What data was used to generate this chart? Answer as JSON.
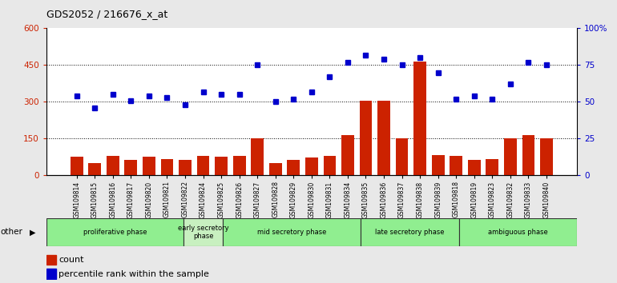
{
  "title": "GDS2052 / 216676_x_at",
  "samples": [
    "GSM109814",
    "GSM109815",
    "GSM109816",
    "GSM109817",
    "GSM109820",
    "GSM109821",
    "GSM109822",
    "GSM109824",
    "GSM109825",
    "GSM109826",
    "GSM109827",
    "GSM109828",
    "GSM109829",
    "GSM109830",
    "GSM109831",
    "GSM109834",
    "GSM109835",
    "GSM109836",
    "GSM109837",
    "GSM109838",
    "GSM109839",
    "GSM109818",
    "GSM109819",
    "GSM109823",
    "GSM109832",
    "GSM109833",
    "GSM109840"
  ],
  "counts": [
    75,
    50,
    80,
    62,
    75,
    68,
    62,
    80,
    75,
    80,
    150,
    50,
    65,
    72,
    80,
    165,
    305,
    305,
    150,
    465,
    82,
    80,
    62,
    68,
    150,
    165,
    150
  ],
  "percentiles": [
    54,
    46,
    55,
    51,
    54,
    53,
    48,
    57,
    55,
    55,
    75,
    50,
    52,
    57,
    67,
    77,
    82,
    79,
    75,
    80,
    70,
    52,
    54,
    52,
    62,
    77,
    75
  ],
  "phases": [
    {
      "name": "proliferative phase",
      "start": 0,
      "end": 7,
      "color": "#90ee90"
    },
    {
      "name": "early secretory\nphase",
      "start": 7,
      "end": 9,
      "color": "#c8f0c0"
    },
    {
      "name": "mid secretory phase",
      "start": 9,
      "end": 16,
      "color": "#90ee90"
    },
    {
      "name": "late secretory phase",
      "start": 16,
      "end": 21,
      "color": "#90ee90"
    },
    {
      "name": "ambiguous phase",
      "start": 21,
      "end": 27,
      "color": "#90ee90"
    }
  ],
  "bar_color": "#cc2200",
  "dot_color": "#0000cc",
  "ylim_left": [
    0,
    600
  ],
  "ylim_right": [
    0,
    100
  ],
  "yticks_left": [
    0,
    150,
    300,
    450,
    600
  ],
  "yticks_right": [
    0,
    25,
    50,
    75,
    100
  ],
  "ytick_labels_left": [
    "0",
    "150",
    "300",
    "450",
    "600"
  ],
  "ytick_labels_right": [
    "0",
    "25",
    "50",
    "75",
    "100%"
  ],
  "background_color": "#e8e8e8",
  "plot_bg": "#ffffff",
  "legend_count_label": "count",
  "legend_pct_label": "percentile rank within the sample"
}
